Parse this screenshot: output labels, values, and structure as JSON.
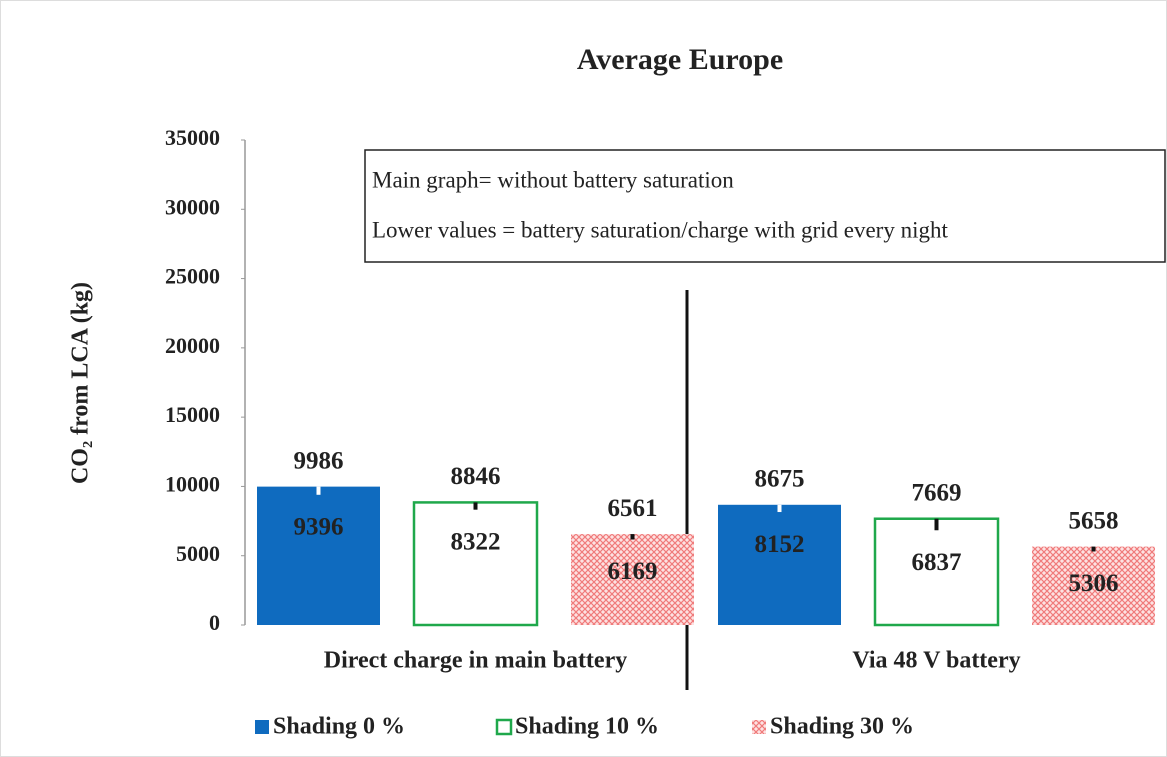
{
  "chart_data": {
    "type": "bar",
    "title": "Average Europe",
    "y_label": "CO₂ from LCA (kg)",
    "annotations": [
      "Main graph= without battery saturation",
      "Lower values = battery saturation/charge with grid every night"
    ],
    "categories": [
      "Direct charge in main battery",
      "Via 48 V battery"
    ],
    "series": [
      {
        "name": "Shading 0 %",
        "color": "#0f6bbf",
        "style": "solid",
        "inner_label_color": "#ffffff",
        "values": [
          9986,
          8675
        ],
        "lower_values": [
          9396,
          8152
        ]
      },
      {
        "name": "Shading 10 %",
        "color": "#1fa84b",
        "style": "outline",
        "inner_label_color": "#111111",
        "values": [
          8846,
          7669
        ],
        "lower_values": [
          8322,
          6837
        ]
      },
      {
        "name": "Shading 30 %",
        "color": "#f28c8c",
        "style": "crosshatch",
        "inner_label_color": "#111111",
        "values": [
          6561,
          5658
        ],
        "lower_values": [
          6169,
          5306
        ]
      }
    ],
    "ylim": [
      0,
      35000
    ],
    "yticks": [
      0,
      5000,
      10000,
      15000,
      20000,
      25000,
      30000,
      35000
    ],
    "grid": false,
    "legend": "bottom"
  }
}
